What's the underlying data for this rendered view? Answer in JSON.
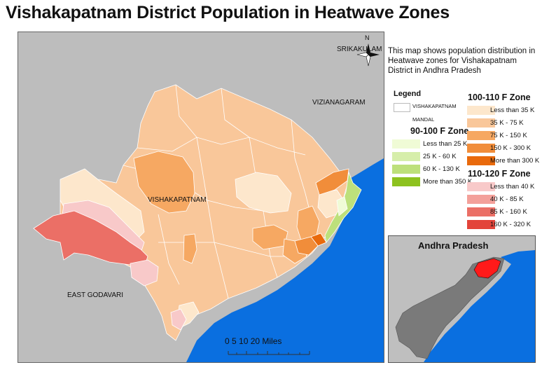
{
  "title": "Vishakapatnam District Population in Heatwave Zones",
  "description": "This map shows population distribution in Heatwave zones for Vishakapatnam District in Andhra Pradesh",
  "map_labels": {
    "srikakulam": "SRIKAKULAM",
    "vizianagaram": "VIZIANAGARAM",
    "vishakapatnam": "VISHAKAPATNAM",
    "east_godavari": "EAST GODAVARI",
    "north": "N"
  },
  "legend": {
    "title": "Legend",
    "mandal_line1": "VISHAKAPATNAM",
    "mandal_line2": "MANDAL",
    "zone_90_100": {
      "title": "90-100 F Zone",
      "items": [
        {
          "label": "Less than 25 K",
          "color": "#f0fbd6"
        },
        {
          "label": "25 K - 60 K",
          "color": "#d6eeaa"
        },
        {
          "label": "60 K - 130 K",
          "color": "#bde07b"
        },
        {
          "label": "More than 350 K",
          "color": "#8dc21f"
        }
      ]
    },
    "zone_100_110": {
      "title": "100-110 F Zone",
      "items": [
        {
          "label": "Less than 35 K",
          "color": "#fde7cc"
        },
        {
          "label": "35 K - 75 K",
          "color": "#f9c79a"
        },
        {
          "label": "75 K - 150 K",
          "color": "#f6a862"
        },
        {
          "label": "150 K - 300 K",
          "color": "#f18d3a"
        },
        {
          "label": "More than 300 K",
          "color": "#e96a0c"
        }
      ]
    },
    "zone_110_120": {
      "title": "110-120 F Zone",
      "items": [
        {
          "label": "Less than 40 K",
          "color": "#f8c9c9"
        },
        {
          "label": "40 K - 85 K",
          "color": "#f3a09a"
        },
        {
          "label": "85 K - 160 K",
          "color": "#eb6f66"
        },
        {
          "label": "160 K - 320 K",
          "color": "#e3443a"
        }
      ]
    }
  },
  "inset": {
    "title": "Andhra Pradesh"
  },
  "scale_bar": {
    "text": "0   5  10      20 Miles"
  },
  "colors": {
    "sea": "#0a6fe0",
    "land": "#bdbdbd",
    "inset_state": "#7a7a7a",
    "inset_highlight": "#ff1a1a"
  }
}
